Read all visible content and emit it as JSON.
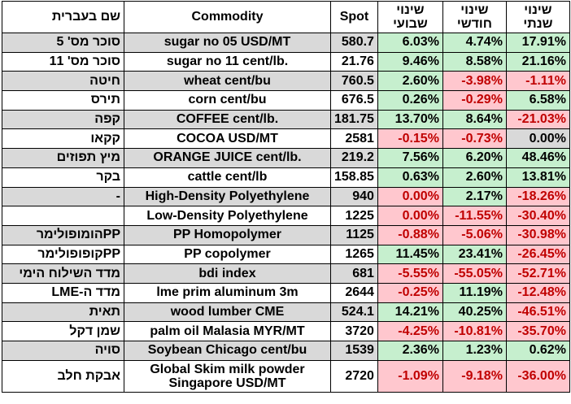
{
  "headers": {
    "hebrew_name": "שם בעברית",
    "commodity": "Commodity",
    "spot": "Spot",
    "weekly": "שינוי שבועי",
    "monthly": "שינוי חודשי",
    "yearly": "שינוי שנתי"
  },
  "rows": [
    {
      "heb": "סוכר מס' 5",
      "com": "sugar no 05 USD/MT",
      "spot": "580.7",
      "w": "6.03%",
      "m": "4.74%",
      "y": "17.91%"
    },
    {
      "heb": "סוכר מס' 11",
      "com": "sugar no 11 cent/lb.",
      "spot": "21.76",
      "w": "9.46%",
      "m": "8.58%",
      "y": "21.16%"
    },
    {
      "heb": "חיטה",
      "com": "wheat cent/bu",
      "spot": "760.5",
      "w": "2.60%",
      "m": "-3.98%",
      "y": "-1.11%"
    },
    {
      "heb": "תירס",
      "com": "corn cent/bu",
      "spot": "676.5",
      "w": "0.26%",
      "m": "-0.29%",
      "y": "6.58%"
    },
    {
      "heb": "קפה",
      "com": "COFFEE cent/lb.",
      "spot": "181.75",
      "w": "13.70%",
      "m": "8.64%",
      "y": "-21.03%"
    },
    {
      "heb": "קקאו",
      "com": "COCOA USD/MT",
      "spot": "2581",
      "w": "-0.15%",
      "m": "-0.73%",
      "y": "0.00%"
    },
    {
      "heb": "מיץ תפוזים",
      "com": "ORANGE JUICE cent/lb.",
      "spot": "219.2",
      "w": "7.56%",
      "m": "6.20%",
      "y": "48.46%"
    },
    {
      "heb": "בקר",
      "com": "cattle cent/lb",
      "spot": "158.85",
      "w": "0.63%",
      "m": "2.60%",
      "y": "13.81%"
    },
    {
      "heb": "-",
      "com": "High-Density Polyethylene",
      "spot": "940",
      "w": "0.00%",
      "m": "2.17%",
      "y": "-18.26%"
    },
    {
      "heb": "",
      "com": "Low-Density Polyethylene",
      "spot": "1225",
      "w": "0.00%",
      "m": "-11.55%",
      "y": "-30.40%"
    },
    {
      "heb": "PPהומופולימר",
      "com": "PP Homopolymer",
      "spot": "1125",
      "w": "-0.88%",
      "m": "-5.06%",
      "y": "-30.98%"
    },
    {
      "heb": "PPקופופולימר",
      "com": "PP copolymer",
      "spot": "1265",
      "w": "11.45%",
      "m": "23.41%",
      "y": "-26.45%"
    },
    {
      "heb": "מדד השילוח הימי",
      "com": "bdi index",
      "spot": "681",
      "w": "-5.55%",
      "m": "-55.05%",
      "y": "-52.71%"
    },
    {
      "heb": "מדד ה-LME",
      "com": "lme prim aluminum 3m",
      "spot": "2644",
      "w": "-0.25%",
      "m": "11.19%",
      "y": "-12.48%"
    },
    {
      "heb": "תאית",
      "com": "wood lumber CME",
      "spot": "524.1",
      "w": "14.21%",
      "m": "40.25%",
      "y": "-46.51%"
    },
    {
      "heb": "שמן דקל",
      "com": "palm oil Malasia MYR/MT",
      "spot": "3720",
      "w": "-4.25%",
      "m": "-10.81%",
      "y": "-35.70%"
    },
    {
      "heb": "סויה",
      "com": "Soybean Chicago cent/bu",
      "spot": "1539",
      "w": "2.36%",
      "m": "1.23%",
      "y": "0.62%"
    },
    {
      "heb": "אבקת חלב",
      "com": "Global Skim milk powder Singapore USD/MT",
      "spot": "2720",
      "w": "-1.09%",
      "m": "-9.18%",
      "y": "-36.00%"
    }
  ],
  "colors": {
    "positive_fill": "#c6efce",
    "negative_fill": "#ffc7ce",
    "negative_text": "#c00000",
    "neutral_fill": "#d9d9d9"
  }
}
